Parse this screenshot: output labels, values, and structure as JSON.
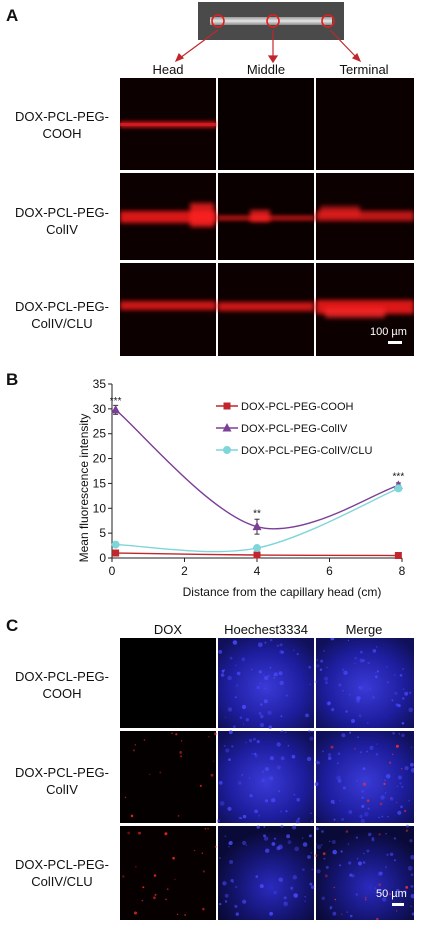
{
  "panelA": {
    "letter": "A",
    "columns": [
      "Head",
      "Middle",
      "Terminal"
    ],
    "rows": [
      {
        "line1": "DOX-PCL-PEG-",
        "line2": "COOH"
      },
      {
        "line1": "DOX-PCL-PEG-",
        "line2": "ColIV"
      },
      {
        "line1": "DOX-PCL-PEG-",
        "line2": "ColIV/CLU"
      }
    ],
    "scale": "100 µm"
  },
  "panelB": {
    "letter": "B"
  },
  "panelC": {
    "letter": "C",
    "columns": [
      "DOX",
      "Hoechest3334",
      "Merge"
    ],
    "rows": [
      {
        "line1": "DOX-PCL-PEG-",
        "line2": "COOH"
      },
      {
        "line1": "DOX-PCL-PEG-",
        "line2": "ColIV"
      },
      {
        "line1": "DOX-PCL-PEG-",
        "line2": "ColIV/CLU"
      }
    ],
    "scale": "50 µm"
  },
  "chart_data": {
    "type": "line",
    "xlabel": "Distance from the capillary head (cm)",
    "ylabel": "Mean fluorescence intensity",
    "xlim": [
      0,
      8
    ],
    "ylim": [
      0,
      35
    ],
    "xticks": [
      "0",
      "2",
      "4",
      "6",
      "8"
    ],
    "yticks": [
      "0",
      "5",
      "10",
      "15",
      "20",
      "25",
      "30",
      "35"
    ],
    "grid": false,
    "legend_position": "top-right",
    "series": [
      {
        "name": "DOX-PCL-PEG-COOH",
        "x": [
          0.1,
          4.0,
          7.9
        ],
        "y": [
          1.0,
          0.6,
          0.5
        ],
        "color": "#c0272d",
        "marker": "square"
      },
      {
        "name": "DOX-PCL-PEG-ColIV",
        "x": [
          0.1,
          4.0,
          7.9
        ],
        "y": [
          29.8,
          6.3,
          14.6
        ],
        "color": "#7b3f98",
        "marker": "triangle"
      },
      {
        "name": "DOX-PCL-PEG-ColIV/CLU",
        "x": [
          0.1,
          4.0,
          7.9
        ],
        "y": [
          2.7,
          2.0,
          14.0
        ],
        "color": "#7fd6d8",
        "marker": "circle"
      }
    ],
    "annotations": [
      {
        "text": "***",
        "x": 0.1,
        "y": 31.0
      },
      {
        "text": "**",
        "x": 4.0,
        "y": 8.3
      },
      {
        "text": "***",
        "x": 7.9,
        "y": 15.8
      }
    ],
    "errors": [
      {
        "series": "DOX-PCL-PEG-ColIV",
        "x": 0.1,
        "err": 0.9
      },
      {
        "series": "DOX-PCL-PEG-ColIV",
        "x": 4.0,
        "err": 1.5
      },
      {
        "series": "DOX-PCL-PEG-ColIV",
        "x": 7.9,
        "err": 0.5
      }
    ]
  }
}
